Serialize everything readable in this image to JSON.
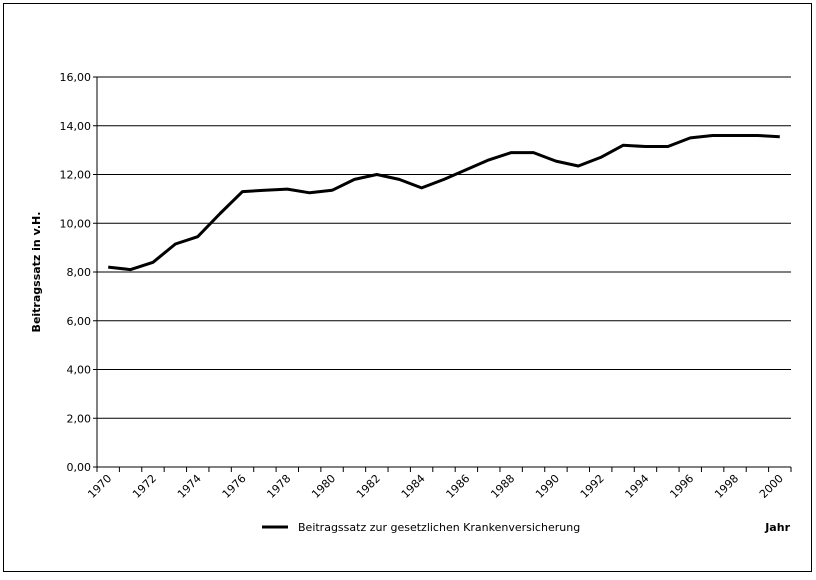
{
  "chart_data": {
    "type": "line",
    "categories": [
      "1970",
      null,
      "1972",
      null,
      "1974",
      null,
      "1976",
      null,
      "1978",
      null,
      "1980",
      null,
      "1982",
      null,
      "1984",
      null,
      "1986",
      null,
      "1988",
      null,
      "1990",
      null,
      "1992",
      null,
      "1994",
      null,
      "1996",
      null,
      "1998",
      null,
      "2000"
    ],
    "series": [
      {
        "name": "Beitragssatz zur gesetzlichen Krankenversicherung",
        "color": "#000000",
        "values": [
          8.2,
          8.1,
          8.4,
          9.15,
          9.45,
          10.4,
          11.3,
          11.35,
          11.4,
          11.25,
          11.35,
          11.8,
          12.0,
          11.8,
          11.45,
          11.8,
          12.2,
          12.6,
          12.9,
          12.9,
          12.55,
          12.35,
          12.7,
          13.2,
          13.15,
          13.15,
          13.5,
          13.6,
          13.6,
          13.6,
          13.55
        ]
      }
    ],
    "y_label": "Beitragssatz in v.H.",
    "x_label": "Jahr",
    "ylim": [
      0,
      16
    ],
    "yticks": [
      {
        "value": 0,
        "label": "0,00"
      },
      {
        "value": 2,
        "label": "2,00"
      },
      {
        "value": 4,
        "label": "4,00"
      },
      {
        "value": 6,
        "label": "6,00"
      },
      {
        "value": 8,
        "label": "8,00"
      },
      {
        "value": 10,
        "label": "10,00"
      },
      {
        "value": 12,
        "label": "12,00"
      },
      {
        "value": 14,
        "label": "14,00"
      },
      {
        "value": 16,
        "label": "16,00"
      }
    ],
    "grid": true,
    "legend": "bottom"
  }
}
